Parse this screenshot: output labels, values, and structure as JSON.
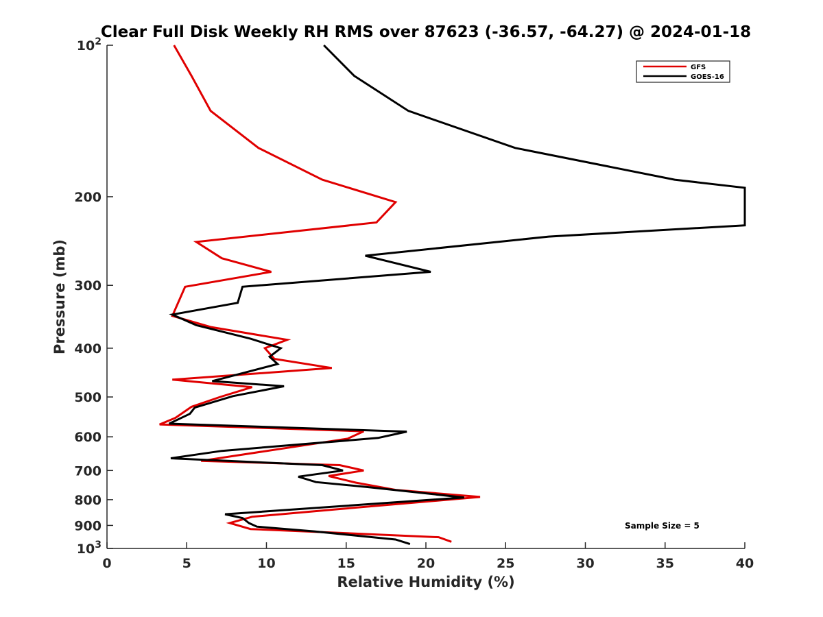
{
  "chart_data": {
    "type": "line",
    "title": "Clear Full Disk Weekly RH RMS over 87623 (-36.57, -64.27) @ 2024-01-18",
    "xlabel": "Relative Humidity (%)",
    "ylabel": "Pressure (mb)",
    "xlim": [
      0,
      40
    ],
    "ylim": [
      100,
      1000
    ],
    "y_scale": "log",
    "y_reversed": true,
    "grid": false,
    "legend_position": "top-right",
    "x_ticks": [
      "0",
      "5",
      "10",
      "15",
      "20",
      "25",
      "30",
      "35",
      "40"
    ],
    "y_ticks": [
      {
        "value": 100,
        "base": "10",
        "exp": "2"
      },
      {
        "value": 200,
        "label": "200"
      },
      {
        "value": 300,
        "label": "300"
      },
      {
        "value": 400,
        "label": "400"
      },
      {
        "value": 500,
        "label": "500"
      },
      {
        "value": 600,
        "label": "600"
      },
      {
        "value": 700,
        "label": "700"
      },
      {
        "value": 800,
        "label": "800"
      },
      {
        "value": 900,
        "label": "900"
      },
      {
        "value": 1000,
        "base": "10",
        "exp": "3"
      }
    ],
    "series": [
      {
        "name": "GFS",
        "color": "#e00000",
        "points": [
          [
            4.2,
            100
          ],
          [
            5.3,
            115
          ],
          [
            6.5,
            135
          ],
          [
            9.5,
            160
          ],
          [
            13.5,
            185
          ],
          [
            18.1,
            205
          ],
          [
            16.9,
            225
          ],
          [
            5.6,
            246
          ],
          [
            7.2,
            265
          ],
          [
            10.3,
            282
          ],
          [
            4.9,
            302
          ],
          [
            4.1,
            345
          ],
          [
            6.5,
            363
          ],
          [
            11.3,
            385
          ],
          [
            9.9,
            400
          ],
          [
            10.5,
            420
          ],
          [
            14.1,
            438
          ],
          [
            4.1,
            462
          ],
          [
            9.1,
            478
          ],
          [
            7.1,
            500
          ],
          [
            5.3,
            523
          ],
          [
            4.3,
            550
          ],
          [
            3.3,
            567
          ],
          [
            16.1,
            585
          ],
          [
            15.1,
            605
          ],
          [
            5.9,
            670
          ],
          [
            14.6,
            683
          ],
          [
            16.1,
            700
          ],
          [
            13.9,
            718
          ],
          [
            15.6,
            740
          ],
          [
            18.1,
            765
          ],
          [
            23.4,
            790
          ],
          [
            14.6,
            835
          ],
          [
            9.1,
            865
          ],
          [
            7.7,
            890
          ],
          [
            9.0,
            915
          ],
          [
            20.8,
            950
          ],
          [
            21.6,
            970
          ]
        ]
      },
      {
        "name": "GOES-16",
        "color": "#000000",
        "points": [
          [
            13.6,
            100
          ],
          [
            15.5,
            115
          ],
          [
            18.9,
            135
          ],
          [
            25.6,
            160
          ],
          [
            35.6,
            185
          ],
          [
            40.0,
            192
          ],
          [
            40.0,
            228
          ],
          [
            27.7,
            240
          ],
          [
            16.2,
            262
          ],
          [
            20.3,
            282
          ],
          [
            8.5,
            302
          ],
          [
            8.2,
            325
          ],
          [
            4.1,
            343
          ],
          [
            5.6,
            360
          ],
          [
            9.0,
            383
          ],
          [
            10.9,
            400
          ],
          [
            10.2,
            416
          ],
          [
            10.7,
            430
          ],
          [
            6.6,
            465
          ],
          [
            11.1,
            476
          ],
          [
            7.9,
            498
          ],
          [
            5.5,
            525
          ],
          [
            5.2,
            540
          ],
          [
            3.9,
            565
          ],
          [
            18.8,
            586
          ],
          [
            17.0,
            603
          ],
          [
            7.2,
            640
          ],
          [
            4.0,
            662
          ],
          [
            13.5,
            683
          ],
          [
            14.8,
            700
          ],
          [
            12.0,
            720
          ],
          [
            13.1,
            738
          ],
          [
            16.3,
            755
          ],
          [
            22.4,
            792
          ],
          [
            7.4,
            855
          ],
          [
            8.5,
            870
          ],
          [
            8.9,
            890
          ],
          [
            9.4,
            905
          ],
          [
            13.0,
            925
          ],
          [
            18.1,
            960
          ],
          [
            19.0,
            980
          ]
        ]
      }
    ],
    "annotation": "Sample Size = 5"
  }
}
